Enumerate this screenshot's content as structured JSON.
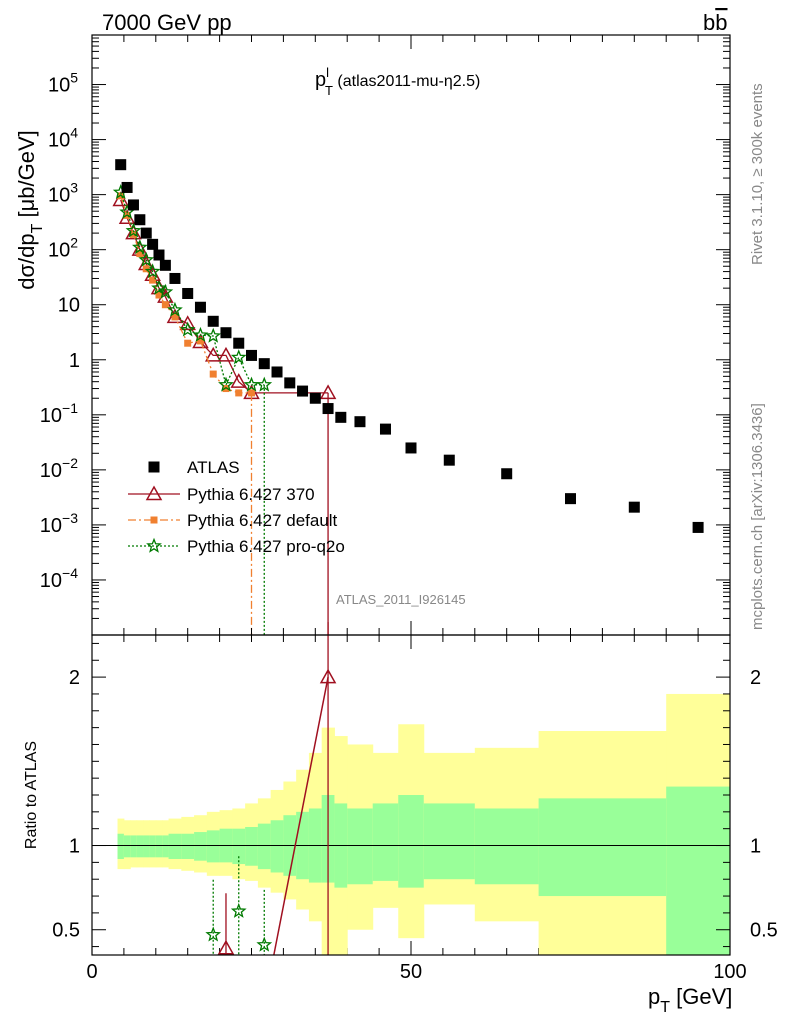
{
  "header": {
    "left": "7000 GeV pp",
    "right_main": "b",
    "right_bar": "b"
  },
  "plot_label": {
    "main": "p",
    "sup": "l",
    "sub": "T",
    "rest": " (atlas2011-mu-η2.5)"
  },
  "ylabel_main": {
    "lead": "dσ/dp",
    "sub": "T",
    "tail": " [μb/GeV]"
  },
  "ylabel_ratio": "Ratio to ATLAS",
  "xlabel": {
    "main": "p",
    "sub": "T",
    "tail": " [GeV]"
  },
  "side_text": {
    "rivet": "Rivet 3.1.10, ≥ 300k events",
    "mcplots": "mcplots.cern.ch [arXiv:1306.3436]"
  },
  "analysis_label": "ATLAS_2011_I926145",
  "legend": [
    {
      "key": "atlas",
      "label": "ATLAS"
    },
    {
      "key": "p370",
      "label": "Pythia 6.427 370"
    },
    {
      "key": "pdef",
      "label": "Pythia 6.427 default"
    },
    {
      "key": "pq2o",
      "label": "Pythia 6.427 pro-q2o"
    }
  ],
  "colors": {
    "atlas": "#000000",
    "p370": "#a01020",
    "pdef": "#f08030",
    "pq2o": "#007a00",
    "band_inner": "#99ff99",
    "band_outer": "#ffff99"
  },
  "chart_data": {
    "type": "scatter",
    "upper_panel": {
      "xlim": [
        0,
        100
      ],
      "ylim_log10": [
        -5,
        5.9
      ],
      "y_tick_labels": [
        "10^-4",
        "10^-3",
        "10^-2",
        "10^-1",
        "1",
        "10",
        "10^2",
        "10^3",
        "10^4",
        "10^5"
      ],
      "log_scale": true
    },
    "lower_panel": {
      "xlim": [
        0,
        100
      ],
      "ylim": [
        0.35,
        2.25
      ],
      "y_ticks": [
        0.5,
        1,
        2
      ],
      "y_tick_labels": [
        "0.5",
        "1",
        "2"
      ]
    },
    "x_ticks": [
      0,
      50,
      100
    ],
    "x_tick_labels": [
      "0",
      "50",
      "100"
    ],
    "atlas": {
      "x": [
        4.5,
        5.5,
        6.5,
        7.5,
        8.5,
        9.5,
        10.5,
        11.5,
        13,
        15,
        17,
        19,
        21,
        23,
        25,
        27,
        29,
        31,
        33,
        35,
        37,
        39,
        42,
        46,
        50,
        56,
        65,
        75,
        85,
        95
      ],
      "y": [
        3500,
        1350,
        650,
        350,
        200,
        125,
        80,
        52,
        30,
        16,
        9,
        5,
        3.1,
        2,
        1.2,
        0.85,
        0.6,
        0.38,
        0.27,
        0.2,
        0.13,
        0.09,
        0.075,
        0.055,
        0.025,
        0.015,
        0.0085,
        0.003,
        0.0021,
        0.0009
      ]
    },
    "series": [
      {
        "key": "p370",
        "name": "Pythia 6.427 370",
        "x": [
          4.5,
          5.5,
          6.5,
          7.5,
          8.5,
          9.5,
          10.5,
          11.5,
          13,
          15,
          17,
          19,
          21,
          23,
          25,
          37
        ],
        "y": [
          800,
          380,
          200,
          100,
          55,
          35,
          20,
          14,
          6,
          4.5,
          2.1,
          1.2,
          1.2,
          0.4,
          0.25,
          0.25
        ],
        "ratio_x": [
          21,
          37
        ],
        "ratio_y": [
          0.39,
          2.0
        ]
      },
      {
        "key": "pdef",
        "name": "Pythia 6.427 default",
        "x": [
          4.5,
          5.5,
          6.5,
          7.5,
          8.5,
          9.5,
          10.5,
          11.5,
          13,
          15,
          17,
          19,
          21,
          23,
          25
        ],
        "y": [
          950,
          420,
          190,
          85,
          45,
          28,
          15,
          10,
          6,
          2,
          2.2,
          0.55,
          0.3,
          0.25,
          0.25
        ],
        "ratio_x": [],
        "ratio_y": []
      },
      {
        "key": "pq2o",
        "name": "Pythia 6.427 pro-q2o",
        "x": [
          4.5,
          5.5,
          6.5,
          7.5,
          8.5,
          9.5,
          10.5,
          11.5,
          13,
          15,
          17,
          19,
          21,
          23,
          25,
          27
        ],
        "y": [
          1100,
          480,
          220,
          110,
          65,
          40,
          20,
          17,
          8,
          3.5,
          2.8,
          2.7,
          0.35,
          1.1,
          0.35,
          0.35
        ],
        "ratio_x": [
          19,
          23,
          27
        ],
        "ratio_y": [
          0.47,
          0.61,
          0.41
        ]
      }
    ],
    "ratio_bands": {
      "edges": [
        4,
        5,
        6,
        7,
        8,
        9,
        10,
        11,
        12,
        14,
        16,
        18,
        20,
        22,
        24,
        26,
        28,
        30,
        32,
        34,
        36,
        38,
        40,
        44,
        48,
        52,
        60,
        70,
        90,
        100
      ],
      "inner_lo": [
        0.92,
        0.93,
        0.93,
        0.93,
        0.93,
        0.93,
        0.93,
        0.93,
        0.92,
        0.92,
        0.91,
        0.9,
        0.9,
        0.89,
        0.88,
        0.86,
        0.84,
        0.82,
        0.8,
        0.78,
        0.78,
        0.75,
        0.77,
        0.79,
        0.75,
        0.8,
        0.77,
        0.7,
        0.35,
        0.35
      ],
      "inner_hi": [
        1.07,
        1.06,
        1.06,
        1.06,
        1.06,
        1.06,
        1.06,
        1.06,
        1.07,
        1.07,
        1.08,
        1.09,
        1.1,
        1.1,
        1.11,
        1.13,
        1.15,
        1.18,
        1.2,
        1.22,
        1.3,
        1.25,
        1.22,
        1.25,
        1.3,
        1.25,
        1.22,
        1.28,
        1.35,
        1.65
      ],
      "outer_lo": [
        0.86,
        0.86,
        0.87,
        0.87,
        0.87,
        0.87,
        0.87,
        0.87,
        0.86,
        0.85,
        0.84,
        0.82,
        0.82,
        0.8,
        0.79,
        0.75,
        0.72,
        0.68,
        0.62,
        0.55,
        0.35,
        0.35,
        0.5,
        0.63,
        0.45,
        0.65,
        0.55,
        0.35,
        0.35,
        0.35
      ],
      "outer_hi": [
        1.16,
        1.15,
        1.15,
        1.15,
        1.15,
        1.15,
        1.15,
        1.15,
        1.16,
        1.17,
        1.18,
        1.2,
        1.21,
        1.22,
        1.25,
        1.28,
        1.33,
        1.38,
        1.45,
        1.55,
        1.7,
        1.65,
        1.6,
        1.55,
        1.72,
        1.55,
        1.58,
        1.68,
        1.9,
        2.12
      ]
    }
  }
}
